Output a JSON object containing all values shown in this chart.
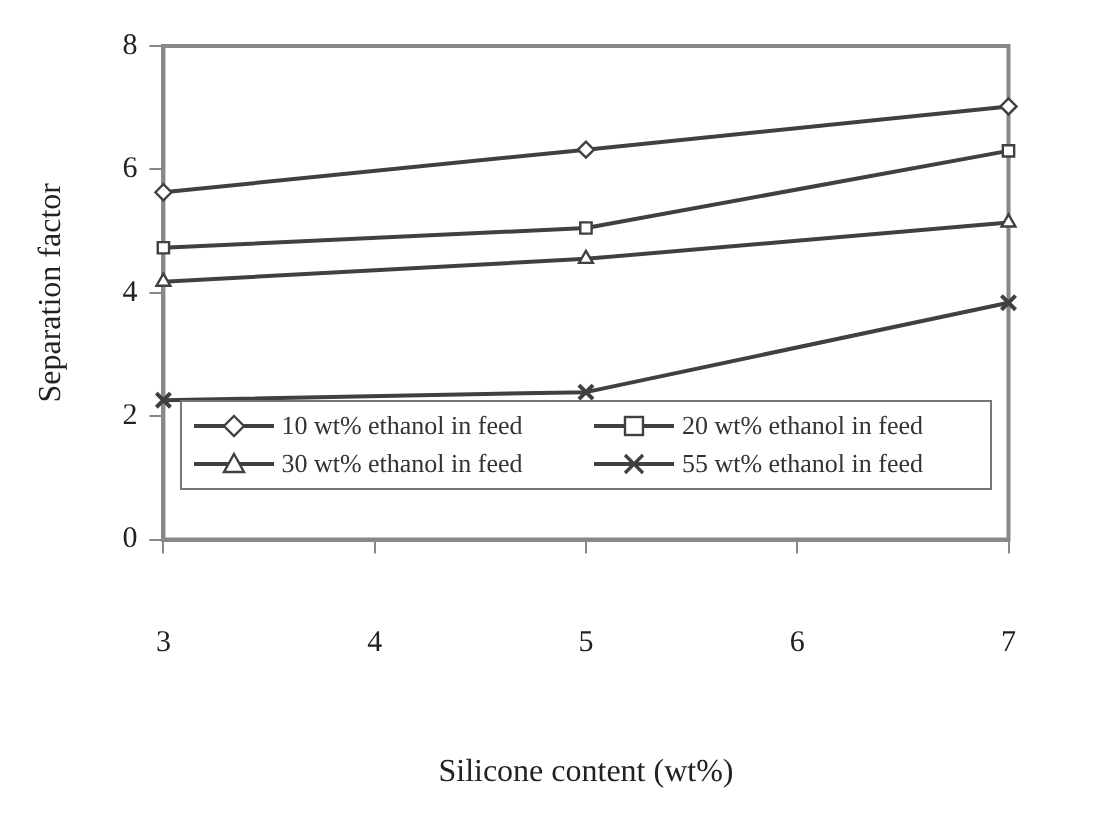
{
  "chart_data": {
    "type": "line",
    "xlabel": "Silicone content (wt%)",
    "ylabel": "Separation factor",
    "x": [
      3,
      5,
      7
    ],
    "xlim": [
      3,
      7
    ],
    "xticks": [
      3,
      4,
      5,
      6,
      7
    ],
    "ylim": [
      0,
      8
    ],
    "yticks": [
      0,
      2,
      4,
      6,
      8
    ],
    "grid": false,
    "legend": "bottom",
    "line_style": "solid",
    "series": [
      {
        "name": "10 wt% ethanol in feed",
        "color": "#404040",
        "marker": "diamond",
        "values": [
          5.63,
          6.32,
          7.02
        ]
      },
      {
        "name": "20 wt% ethanol in feed",
        "color": "#404040",
        "marker": "square",
        "values": [
          4.73,
          5.05,
          6.3
        ]
      },
      {
        "name": "30 wt% ethanol in feed",
        "color": "#404040",
        "marker": "triangle",
        "values": [
          4.18,
          4.55,
          5.14
        ]
      },
      {
        "name": "55 wt% ethanol in feed",
        "color": "#404040",
        "marker": "cross",
        "values": [
          2.26,
          2.39,
          3.84
        ]
      }
    ]
  }
}
